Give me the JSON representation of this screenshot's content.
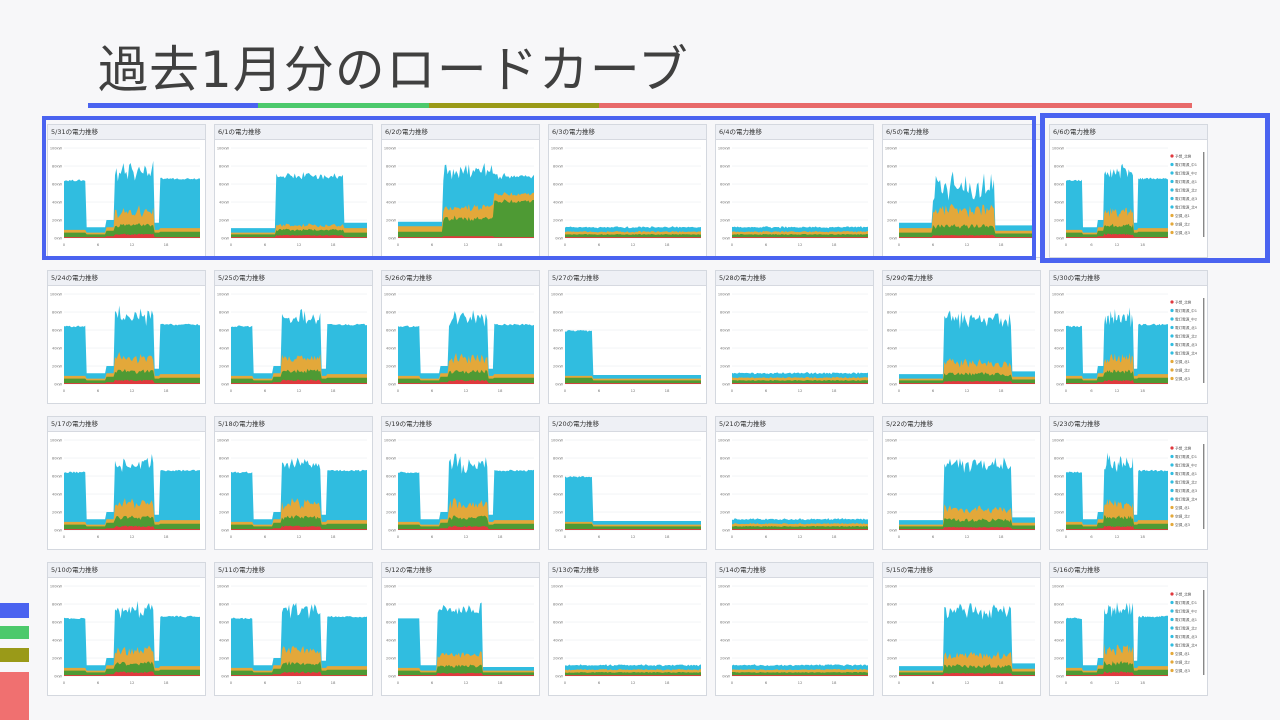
{
  "slide": {
    "title": "過去1月分のロードカーブ",
    "title_bar_colors": [
      "#4a63f0",
      "#4cc96c",
      "#9a9a18",
      "#e86a6a"
    ],
    "side_bar_colors": [
      "#4a63f0",
      "#4cc96c",
      "#9a9a18",
      "#f07070"
    ]
  },
  "charts": {
    "y_ticks": [
      "100kW",
      "80kW",
      "60kW",
      "40kW",
      "20kW",
      "0kW"
    ],
    "x_ticks": [
      "0",
      "6",
      "12",
      "18"
    ],
    "series_colors": {
      "red": "#e0393e",
      "green": "#4e9a34",
      "orange": "#e3a83a",
      "cyan": "#30bde0"
    },
    "legend": [
      "予想_北側",
      "電灯電源_中1",
      "電灯電源_中2",
      "電灯電源_北1",
      "電灯電源_北2",
      "電灯電源_北3",
      "電灯電源_北4",
      "空調_北1",
      "空調_北2",
      "空調_北3"
    ]
  },
  "rows": [
    {
      "cards": [
        {
          "date_label": "5/31の電力推移",
          "profile": "weekday"
        },
        {
          "date_label": "6/1の電力推移",
          "profile": "late"
        },
        {
          "date_label": "6/2の電力推移",
          "profile": "green_heavy"
        },
        {
          "date_label": "6/3の電力推移",
          "profile": "flat"
        },
        {
          "date_label": "6/4の電力推移",
          "profile": "flat"
        },
        {
          "date_label": "6/5の電力推移",
          "profile": "noon"
        },
        {
          "date_label": "6/6の電力推移",
          "profile": "weekday_legend"
        }
      ]
    },
    {
      "cards": [
        {
          "date_label": "5/24の電力推移",
          "profile": "weekday"
        },
        {
          "date_label": "5/25の電力推移",
          "profile": "weekday"
        },
        {
          "date_label": "5/26の電力推移",
          "profile": "weekday"
        },
        {
          "date_label": "5/27の電力推移",
          "profile": "morning_only"
        },
        {
          "date_label": "5/28の電力推移",
          "profile": "flat"
        },
        {
          "date_label": "5/29の電力推移",
          "profile": "late_weekday"
        },
        {
          "date_label": "5/30の電力推移",
          "profile": "weekday_legend"
        }
      ]
    },
    {
      "cards": [
        {
          "date_label": "5/17の電力推移",
          "profile": "weekday"
        },
        {
          "date_label": "5/18の電力推移",
          "profile": "weekday"
        },
        {
          "date_label": "5/19の電力推移",
          "profile": "weekday"
        },
        {
          "date_label": "5/20の電力推移",
          "profile": "morning_only"
        },
        {
          "date_label": "5/21の電力推移",
          "profile": "flat"
        },
        {
          "date_label": "5/22の電力推移",
          "profile": "late_weekday"
        },
        {
          "date_label": "5/23の電力推移",
          "profile": "weekday_legend"
        }
      ]
    },
    {
      "cards": [
        {
          "date_label": "5/10の電力推移",
          "profile": "weekday"
        },
        {
          "date_label": "5/11の電力推移",
          "profile": "weekday"
        },
        {
          "date_label": "5/12の電力推移",
          "profile": "short"
        },
        {
          "date_label": "5/13の電力推移",
          "profile": "flat"
        },
        {
          "date_label": "5/14の電力推移",
          "profile": "flat"
        },
        {
          "date_label": "5/15の電力推移",
          "profile": "late_weekday"
        },
        {
          "date_label": "5/16の電力推移",
          "profile": "weekday_legend"
        }
      ]
    }
  ]
}
